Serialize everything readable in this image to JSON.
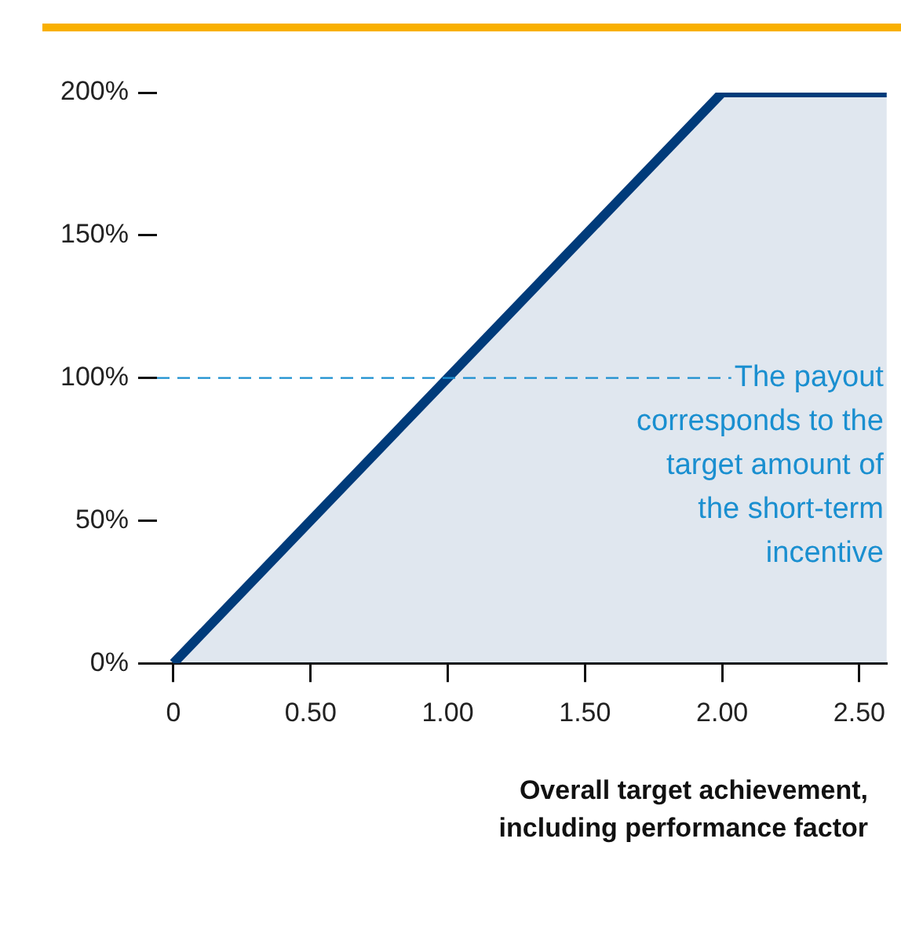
{
  "chart_data": {
    "type": "area",
    "xlabel": "Overall target achievement, including performance factor",
    "x": [
      0,
      2,
      2.6
    ],
    "series": [
      {
        "color": "#003b7a",
        "values": [
          0,
          200,
          200
        ]
      }
    ],
    "xlim": [
      -0.06,
      2.6
    ],
    "xticks": [
      0,
      {
        "value": 0.5,
        "label": "0.50"
      },
      {
        "value": 1,
        "label": "1.00"
      },
      {
        "value": 1.5,
        "label": "1.50"
      },
      {
        "value": 2,
        "label": "2.00"
      },
      {
        "value": 2.5,
        "label": "2.50"
      }
    ],
    "ylim": [
      0,
      200
    ],
    "yticks": [
      {
        "value": 0,
        "label": "0%"
      },
      {
        "value": 50,
        "label": "50%"
      },
      {
        "value": 100,
        "label": "100%"
      },
      {
        "value": 150,
        "label": "150%"
      },
      {
        "value": 200,
        "label": "200%"
      }
    ],
    "ref_lines": [
      {
        "axis": "y",
        "value": 100,
        "label": "The payout corresponds to the target amount of the short-term incentive",
        "color": "#1a8fd0",
        "line_style": "dashed"
      }
    ],
    "grid": false,
    "legend": false
  }
}
